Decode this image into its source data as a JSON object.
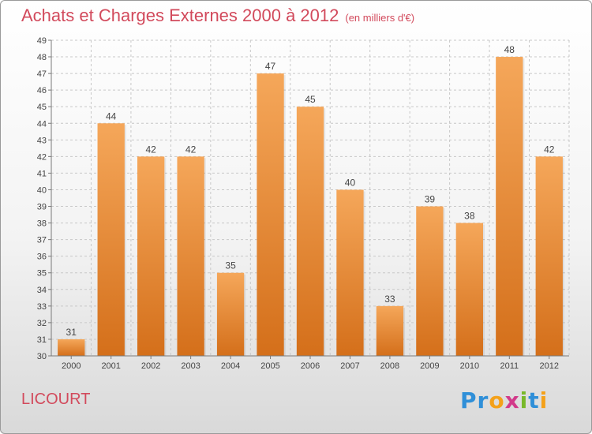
{
  "header": {
    "title": "Achats et Charges Externes 2000 à 2012",
    "subtitle": "(en milliers d'€)"
  },
  "commune": "LICOURT",
  "logo": {
    "letters": [
      "P",
      "r",
      "o",
      "x",
      "i",
      "t",
      "i"
    ],
    "colors": [
      "#2f8fd8",
      "#2f8fd8",
      "#f4a11a",
      "#d23a8a",
      "#78b829",
      "#2f8fd8",
      "#f4a11a"
    ]
  },
  "colors": {
    "bar_top": "#f5a75a",
    "bar_bottom": "#d46f1a",
    "title": "#d24a5c"
  },
  "chart_data": {
    "type": "bar",
    "categories": [
      "2000",
      "2001",
      "2002",
      "2003",
      "2004",
      "2005",
      "2006",
      "2007",
      "2008",
      "2009",
      "2010",
      "2011",
      "2012"
    ],
    "values": [
      31,
      44,
      42,
      42,
      35,
      47,
      45,
      40,
      33,
      39,
      38,
      48,
      42
    ],
    "ylim": [
      30,
      49
    ],
    "yticks": [
      30,
      31,
      32,
      33,
      34,
      35,
      36,
      37,
      38,
      39,
      40,
      41,
      42,
      43,
      44,
      45,
      46,
      47,
      48,
      49
    ],
    "grid": true,
    "legend": false
  }
}
